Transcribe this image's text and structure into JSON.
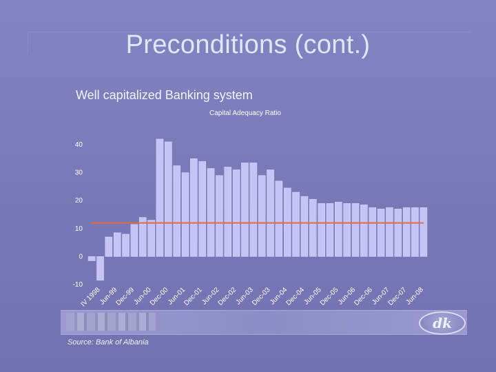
{
  "slide": {
    "title": "Preconditions (cont.)",
    "subtitle": "Well capitalized Banking system",
    "source": "Source: Bank of Albania",
    "logo": "dk"
  },
  "colors": {
    "bar": "#c4c4f6",
    "bar_edge": "#dcdcff",
    "reference_line": "#e36a3c",
    "text": "#ffffff"
  },
  "chart_data": {
    "type": "bar",
    "title": "Capital Adequacy Ratio",
    "ylim": [
      -10,
      40
    ],
    "yticks": [
      40,
      30,
      20,
      10,
      0,
      -10
    ],
    "xtick_labels": [
      "IV 1998",
      "Jun-99",
      "Dec-99",
      "Jun-00",
      "Dec-00",
      "Jun-01",
      "Dec-01",
      "Jun-02",
      "Dec-02",
      "Jun-03",
      "Dec-03",
      "Jun-04",
      "Dec-04",
      "Jun-05",
      "Dec-05",
      "Jun-06",
      "Dec-06",
      "Jun-07",
      "Dec-07",
      "Jun-08"
    ],
    "values": [
      -1.5,
      -8.5,
      7,
      8.5,
      8,
      11.5,
      14,
      13,
      42,
      41,
      32.5,
      30,
      35,
      34,
      31.5,
      29,
      32,
      31,
      33.5,
      33.5,
      29,
      31,
      27,
      24.5,
      23,
      21.5,
      20.5,
      19,
      19,
      19.5,
      19,
      19,
      18.5,
      17.5,
      17,
      17.5,
      17,
      17.5,
      17.5,
      17.5
    ],
    "reference_value": 12,
    "grid": false,
    "legend": "none"
  }
}
